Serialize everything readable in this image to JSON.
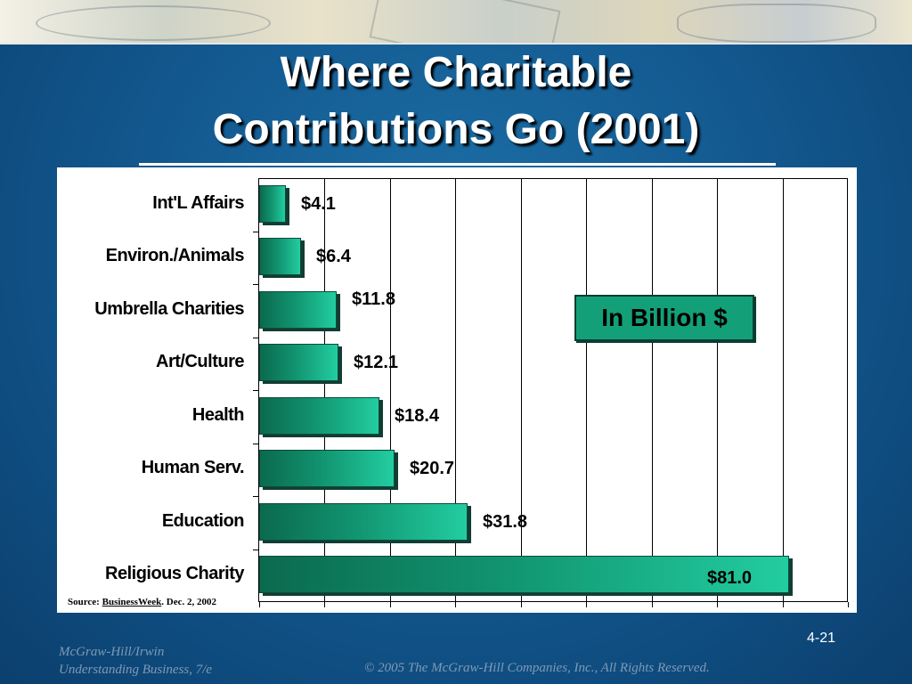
{
  "title_line1": "Where Charitable",
  "title_line2": "Contributions Go (2001)",
  "unit_box": "In Billion $",
  "source": {
    "prefix": "Source: ",
    "publication": "BusinessWeek",
    "suffix": ". Dec. 2, 2002"
  },
  "slide_number": "4-21",
  "footer": {
    "publisher": "McGraw-Hill/Irwin",
    "book": "Understanding Business, 7/e",
    "copyright": "© 2005 The McGraw-Hill Companies, Inc., All Rights Reserved."
  },
  "colors": {
    "background": "#135a91",
    "bar": "#11936f",
    "unit_box": "#13a078"
  },
  "chart_data": {
    "type": "bar",
    "orientation": "horizontal",
    "title": "Where Charitable Contributions Go (2001)",
    "categories": [
      "Int'L Affairs",
      "Environ./Animals",
      "Umbrella Charities",
      "Art/Culture",
      "Health",
      "Human Serv.",
      "Education",
      "Religious Charity"
    ],
    "values": [
      4.1,
      6.4,
      11.8,
      12.1,
      18.4,
      20.7,
      31.8,
      81.0
    ],
    "value_labels": [
      "$4.1",
      "$6.4",
      "$11.8",
      "$12.1",
      "$18.4",
      "$20.7",
      "$31.8",
      "$81.0"
    ],
    "xlim": [
      0,
      90
    ],
    "grid": true,
    "xlabel": "",
    "ylabel": ""
  }
}
